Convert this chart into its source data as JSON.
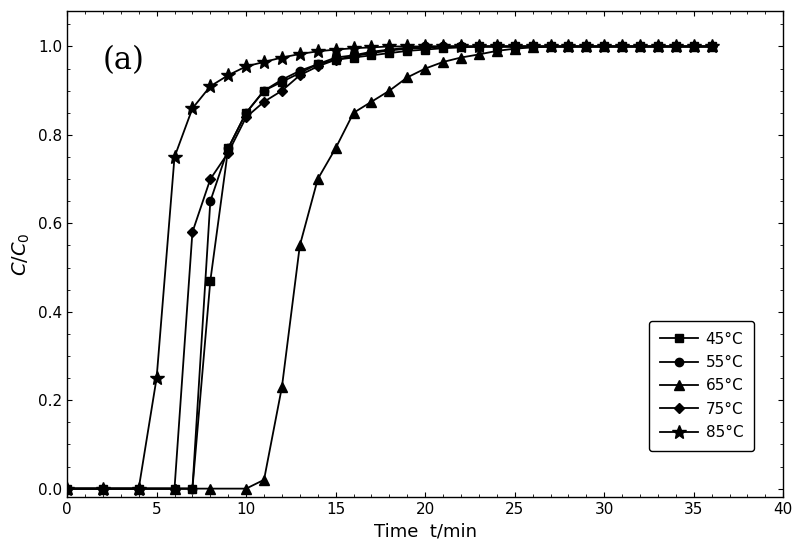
{
  "title_label": "(a)",
  "xlabel": "Time  t/min",
  "ylabel": "C/C$_0$",
  "xlim": [
    0,
    40
  ],
  "ylim": [
    -0.02,
    1.08
  ],
  "xticks": [
    0,
    5,
    10,
    15,
    20,
    25,
    30,
    35,
    40
  ],
  "yticks": [
    0.0,
    0.2,
    0.4,
    0.6,
    0.8,
    1.0
  ],
  "background_color": "#ffffff",
  "line_color": "#000000",
  "series": [
    {
      "label": "45°C",
      "marker": "s",
      "x": [
        0,
        2,
        4,
        6,
        7,
        8,
        9,
        10,
        11,
        12,
        13,
        14,
        15,
        16,
        17,
        18,
        19,
        20,
        21,
        22,
        23,
        24,
        25,
        26,
        27,
        28,
        29,
        30,
        31,
        32,
        33,
        34,
        35,
        36
      ],
      "y": [
        0.0,
        0.0,
        0.0,
        0.0,
        0.0,
        0.47,
        0.77,
        0.85,
        0.9,
        0.92,
        0.94,
        0.96,
        0.97,
        0.975,
        0.98,
        0.985,
        0.99,
        0.993,
        0.996,
        0.998,
        1.0,
        1.0,
        1.0,
        1.0,
        1.0,
        1.0,
        1.0,
        1.0,
        1.0,
        1.0,
        1.0,
        1.0,
        1.0,
        1.0
      ]
    },
    {
      "label": "55°C",
      "marker": "o",
      "x": [
        0,
        2,
        4,
        6,
        7,
        8,
        9,
        10,
        11,
        12,
        13,
        14,
        15,
        16,
        17,
        18,
        19,
        20,
        21,
        22,
        23,
        24,
        25,
        26,
        27,
        28,
        29,
        30,
        31,
        32,
        33,
        34,
        35,
        36
      ],
      "y": [
        0.0,
        0.0,
        0.0,
        0.0,
        0.0,
        0.65,
        0.77,
        0.85,
        0.9,
        0.925,
        0.945,
        0.96,
        0.975,
        0.98,
        0.988,
        0.993,
        0.997,
        1.0,
        1.0,
        1.0,
        1.0,
        1.0,
        1.0,
        1.0,
        1.0,
        1.0,
        1.0,
        1.0,
        1.0,
        1.0,
        1.0,
        1.0,
        1.0,
        1.0
      ]
    },
    {
      "label": "65°C",
      "marker": "^",
      "x": [
        0,
        2,
        4,
        6,
        8,
        10,
        11,
        12,
        13,
        14,
        15,
        16,
        17,
        18,
        19,
        20,
        21,
        22,
        23,
        24,
        25,
        26,
        27,
        28,
        29,
        30,
        31,
        32,
        33,
        34,
        35,
        36
      ],
      "y": [
        0.0,
        0.0,
        0.0,
        0.0,
        0.0,
        0.0,
        0.02,
        0.23,
        0.55,
        0.7,
        0.77,
        0.85,
        0.875,
        0.9,
        0.93,
        0.95,
        0.965,
        0.975,
        0.982,
        0.99,
        0.995,
        0.998,
        1.0,
        1.0,
        1.0,
        1.0,
        1.0,
        1.0,
        1.0,
        1.0,
        1.0,
        1.0
      ]
    },
    {
      "label": "75°C",
      "marker": "D",
      "x": [
        0,
        2,
        4,
        6,
        7,
        8,
        9,
        10,
        11,
        12,
        13,
        14,
        15,
        16,
        17,
        18,
        19,
        20,
        21,
        22,
        23,
        24,
        25,
        26,
        27,
        28,
        29,
        30,
        31,
        32,
        33,
        34,
        35,
        36
      ],
      "y": [
        0.0,
        0.0,
        0.0,
        0.0,
        0.58,
        0.7,
        0.76,
        0.84,
        0.875,
        0.9,
        0.935,
        0.955,
        0.97,
        0.978,
        0.985,
        0.991,
        0.995,
        0.997,
        1.0,
        1.0,
        1.0,
        1.0,
        1.0,
        1.0,
        1.0,
        1.0,
        1.0,
        1.0,
        1.0,
        1.0,
        1.0,
        1.0,
        1.0,
        1.0
      ]
    },
    {
      "label": "85°C",
      "marker": "*",
      "x": [
        0,
        2,
        4,
        5,
        6,
        7,
        8,
        9,
        10,
        11,
        12,
        13,
        14,
        15,
        16,
        17,
        18,
        19,
        20,
        21,
        22,
        23,
        24,
        25,
        26,
        27,
        28,
        29,
        30,
        31,
        32,
        33,
        34,
        35,
        36
      ],
      "y": [
        0.0,
        0.0,
        0.0,
        0.25,
        0.75,
        0.86,
        0.91,
        0.935,
        0.955,
        0.965,
        0.975,
        0.983,
        0.989,
        0.993,
        0.996,
        0.998,
        1.0,
        1.0,
        1.0,
        1.0,
        1.0,
        1.0,
        1.0,
        1.0,
        1.0,
        1.0,
        1.0,
        1.0,
        1.0,
        1.0,
        1.0,
        1.0,
        1.0,
        1.0,
        1.0
      ]
    }
  ]
}
